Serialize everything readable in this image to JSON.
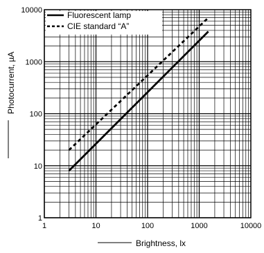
{
  "chart_data": {
    "type": "line",
    "title": "",
    "xlabel": "Brightness, lx",
    "ylabel": "Photocurrent, µA",
    "x_scale": "log",
    "y_scale": "log",
    "xlim": [
      1,
      10000
    ],
    "ylim": [
      1,
      10000
    ],
    "grid": true,
    "legend_position": "top-left",
    "x_ticks": [
      "1",
      "10",
      "100",
      "1000",
      "10000"
    ],
    "y_ticks": [
      "1",
      "10",
      "100",
      "1000",
      "10000"
    ],
    "series": [
      {
        "name": "Fluorescent lamp",
        "style": "solid",
        "color": "#000000",
        "x": [
          3,
          1500
        ],
        "y": [
          8,
          3800
        ]
      },
      {
        "name": "CIE standard “A”",
        "style": "dashed",
        "color": "#000000",
        "x": [
          3,
          1500
        ],
        "y": [
          20,
          7000
        ]
      }
    ]
  }
}
